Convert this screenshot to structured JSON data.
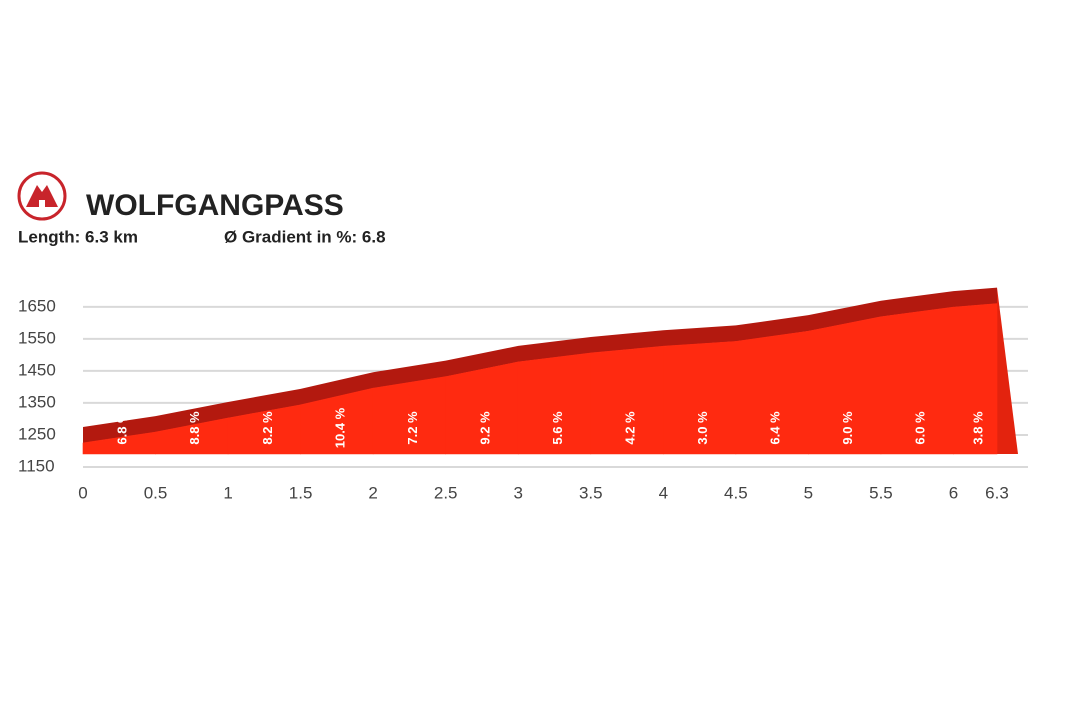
{
  "chart_data": {
    "type": "area",
    "title": "WOLFGANGPASS",
    "length": "Length: 6.3 km",
    "avg_gradient": "Ø Gradient in %: 6.8",
    "x": [
      0,
      0.5,
      1,
      1.5,
      2,
      2.5,
      3,
      3.5,
      4,
      4.5,
      5,
      5.5,
      6,
      6.3
    ],
    "elevation": [
      1225,
      1259,
      1303,
      1344,
      1396,
      1432,
      1478,
      1506,
      1527,
      1542,
      1574,
      1619,
      1649,
      1660
    ],
    "gradients": [
      6.8,
      8.8,
      8.2,
      10.4,
      7.2,
      9.2,
      5.6,
      4.2,
      3.0,
      6.4,
      9.0,
      6.0,
      3.8
    ],
    "gradient_labels": [
      "6.8 %",
      "8.8 %",
      "8.2 %",
      "10.4 %",
      "7.2 %",
      "9.2 %",
      "5.6 %",
      "4.2 %",
      "3.0 %",
      "6.4 %",
      "9.0 %",
      "6.0 %",
      "3.8 %"
    ],
    "color": "#ff2a10",
    "band_color": "#b3190f",
    "xlim": [
      0,
      6.3
    ],
    "xticks": [
      0,
      0.5,
      1,
      1.5,
      2,
      2.5,
      3,
      3.5,
      4,
      4.5,
      5,
      5.5,
      6,
      6.3
    ],
    "ylim": [
      1150,
      1690
    ],
    "yticks": [
      1150,
      1250,
      1350,
      1450,
      1550,
      1650
    ],
    "grid": true
  }
}
